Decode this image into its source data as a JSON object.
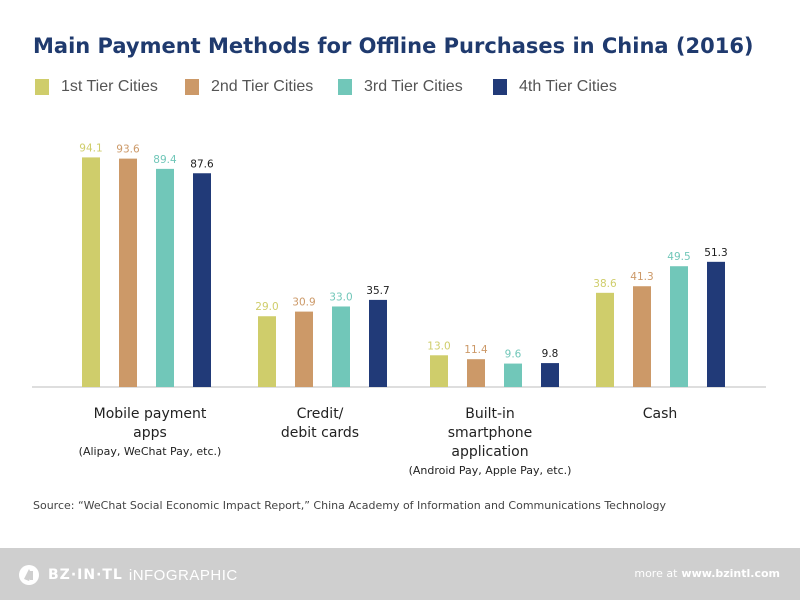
{
  "colors": {
    "title": "#1f3a6e",
    "series": [
      "#cfcd6b",
      "#cc9968",
      "#71c7b9",
      "#213a78"
    ],
    "axis": "#bdbdbd",
    "footer_bg": "#cfcfcf"
  },
  "chart_data": {
    "type": "bar",
    "title": "Main Payment Methods for Offline Purchases in China (2016)",
    "xlabel": "",
    "ylabel": "",
    "ylim": [
      0,
      100
    ],
    "grid": false,
    "legend_position": "top-left",
    "categories": [
      {
        "lines": [
          "Mobile payment",
          "apps"
        ],
        "sub": "(Alipay, WeChat Pay, etc.)"
      },
      {
        "lines": [
          "Credit/",
          "debit cards"
        ],
        "sub": ""
      },
      {
        "lines": [
          "Built-in",
          "smartphone",
          "application"
        ],
        "sub": "(Android Pay, Apple Pay, etc.)"
      },
      {
        "lines": [
          "Cash"
        ],
        "sub": ""
      }
    ],
    "series": [
      {
        "name": "1st Tier Cities",
        "values": [
          94.1,
          29.0,
          13.0,
          38.6
        ],
        "labels": [
          "94.1",
          "29.0",
          "13.0",
          "38.6"
        ]
      },
      {
        "name": "2nd Tier Cities",
        "values": [
          93.6,
          30.9,
          11.4,
          41.3
        ],
        "labels": [
          "93.6",
          "30.9",
          "11.4",
          "41.3"
        ]
      },
      {
        "name": "3rd Tier Cities",
        "values": [
          89.4,
          33.0,
          9.6,
          49.5
        ],
        "labels": [
          "89.4",
          "33.0",
          "9.6",
          "49.5"
        ]
      },
      {
        "name": "4th Tier Cities",
        "values": [
          87.6,
          35.7,
          9.8,
          51.3
        ],
        "labels": [
          "87.6",
          "35.7",
          "9.8",
          "51.3"
        ]
      }
    ]
  },
  "source": "Source: “WeChat Social Economic Impact Report,” China Academy of Information and Communications Technology",
  "footer": {
    "brand": "BZ·IN·TL",
    "brand_sub": "iNFOGRAPHIC",
    "more_label": "more at",
    "more_link": "www.bzintl.com"
  }
}
